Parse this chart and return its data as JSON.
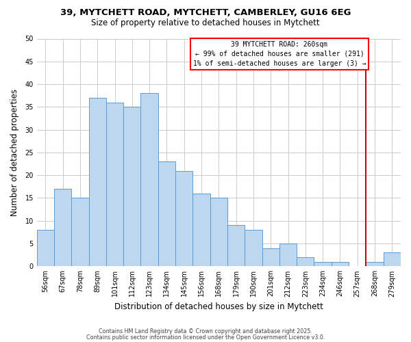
{
  "title1": "39, MYTCHETT ROAD, MYTCHETT, CAMBERLEY, GU16 6EG",
  "title2": "Size of property relative to detached houses in Mytchett",
  "xlabel": "Distribution of detached houses by size in Mytchett",
  "ylabel": "Number of detached properties",
  "categories": [
    "56sqm",
    "67sqm",
    "78sqm",
    "89sqm",
    "101sqm",
    "112sqm",
    "123sqm",
    "134sqm",
    "145sqm",
    "156sqm",
    "168sqm",
    "179sqm",
    "190sqm",
    "201sqm",
    "212sqm",
    "223sqm",
    "234sqm",
    "246sqm",
    "257sqm",
    "268sqm",
    "279sqm"
  ],
  "values": [
    8,
    17,
    15,
    37,
    36,
    35,
    38,
    23,
    21,
    16,
    15,
    9,
    8,
    4,
    5,
    2,
    1,
    1,
    0,
    1,
    3
  ],
  "bar_color": "#BDD7EE",
  "bar_edge_color": "#5B9BD5",
  "ylim": [
    0,
    50
  ],
  "yticks": [
    0,
    5,
    10,
    15,
    20,
    25,
    30,
    35,
    40,
    45,
    50
  ],
  "vline_index": 18.5,
  "vline_color": "#CC0000",
  "annotation_title": "39 MYTCHETT ROAD: 260sqm",
  "annotation_line1": "← 99% of detached houses are smaller (291)",
  "annotation_line2": "1% of semi-detached houses are larger (3) →",
  "footer1": "Contains HM Land Registry data © Crown copyright and database right 2025.",
  "footer2": "Contains public sector information licensed under the Open Government Licence v3.0.",
  "background_color": "#FFFFFF",
  "grid_color": "#CCCCCC"
}
